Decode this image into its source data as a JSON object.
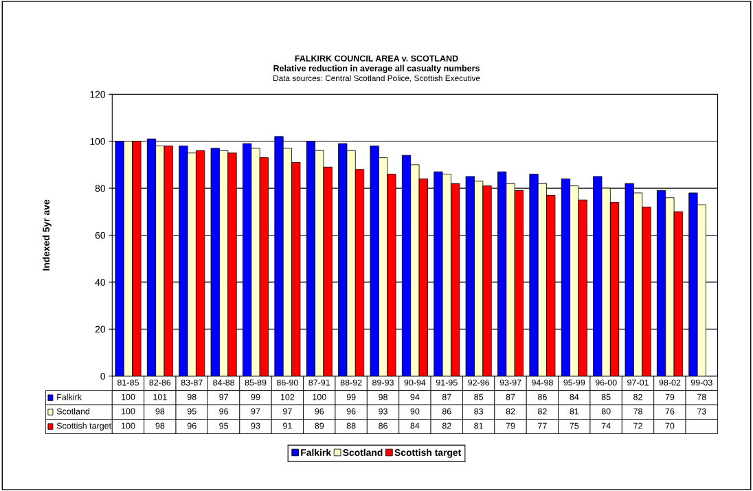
{
  "chart_data": {
    "type": "bar",
    "title": "FALKIRK COUNCIL AREA v. SCOTLAND",
    "subtitle": "Relative reduction in average all casualty numbers",
    "annotations": [
      "Data sources: Central Scotland Police, Scottish Executive"
    ],
    "ylabel": "Indexed 5yr ave",
    "categories": [
      "81-85",
      "82-86",
      "83-87",
      "84-88",
      "85-89",
      "86-90",
      "87-91",
      "88-92",
      "89-93",
      "90-94",
      "91-95",
      "92-96",
      "93-97",
      "94-98",
      "95-99",
      "96-00",
      "97-01",
      "98-02",
      "99-03"
    ],
    "series": [
      {
        "name": "Falkirk",
        "color": "#0000ff",
        "values": [
          100,
          101,
          98,
          97,
          99,
          102,
          100,
          99,
          98,
          94,
          87,
          85,
          87,
          86,
          84,
          85,
          82,
          79,
          78
        ]
      },
      {
        "name": "Scotland",
        "color": "#ffffcc",
        "values": [
          100,
          98,
          95,
          96,
          97,
          97,
          96,
          96,
          93,
          90,
          86,
          83,
          82,
          82,
          81,
          80,
          78,
          76,
          73
        ]
      },
      {
        "name": "Scottish target",
        "color": "#ff0000",
        "values": [
          100,
          98,
          96,
          95,
          93,
          91,
          89,
          88,
          86,
          84,
          82,
          81,
          79,
          77,
          75,
          74,
          72,
          70,
          null
        ]
      }
    ],
    "ylim": [
      0,
      120
    ],
    "yticks": [
      0,
      20,
      40,
      60,
      80,
      100,
      120
    ],
    "grid": "y",
    "legend": "bottom",
    "data_labels": true
  }
}
